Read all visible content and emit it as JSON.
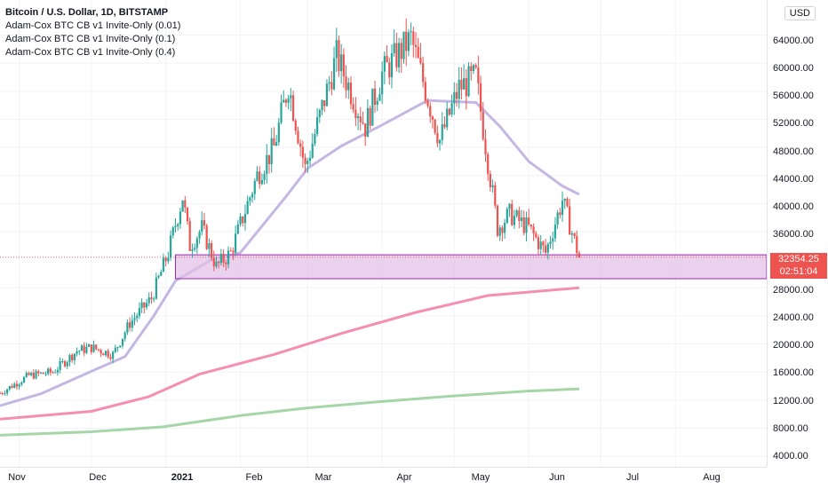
{
  "header": {
    "symbol_title": "Bitcoin / U.S. Dollar, 1D, BITSTAMP",
    "indicators": [
      "Adam-Cox BTC CB v1 Invite-Only (0.01)",
      "Adam-Cox BTC CB v1 Invite-Only (0.1)",
      "Adam-Cox BTC CB v1 Invite-Only (0.4)"
    ]
  },
  "currency_button": "USD",
  "price_axis_ticks": [
    "64000.00",
    "60000.00",
    "56000.00",
    "52000.00",
    "48000.00",
    "44000.00",
    "40000.00",
    "36000.00",
    "28000.00",
    "24000.00",
    "20000.00",
    "16000.00",
    "12000.00",
    "8000.00",
    "4000.00"
  ],
  "time_axis_ticks": [
    "Nov",
    "Dec",
    "2021",
    "Feb",
    "Mar",
    "Apr",
    "May",
    "Jun",
    "Jul",
    "Aug"
  ],
  "last_price": {
    "value": "32354.25",
    "countdown": "02:51:04"
  },
  "colors": {
    "up": "#26a69a",
    "down": "#ef5350",
    "band_fill": "#e1bee7",
    "band_border": "#9c27b0",
    "line_lavender": "#c5b7e3",
    "line_pink": "#f48fb1",
    "line_green": "#a5d6a7"
  },
  "chart_data": {
    "type": "candlestick",
    "title": "Bitcoin / U.S. Dollar, 1D, BITSTAMP",
    "xlabel": "",
    "ylabel": "",
    "ylim": [
      2500,
      69000
    ],
    "x_range": [
      "2020-10-24",
      "2021-09-08"
    ],
    "grid": true,
    "close_path": [
      [
        "2020-10-24",
        13000
      ],
      [
        "2020-11-05",
        15500
      ],
      [
        "2020-11-15",
        16000
      ],
      [
        "2020-11-25",
        19000
      ],
      [
        "2020-12-01",
        19500
      ],
      [
        "2020-12-10",
        18500
      ],
      [
        "2020-12-17",
        23000
      ],
      [
        "2020-12-26",
        26500
      ],
      [
        "2021-01-02",
        33000
      ],
      [
        "2021-01-08",
        41000
      ],
      [
        "2021-01-11",
        34000
      ],
      [
        "2021-01-16",
        36500
      ],
      [
        "2021-01-22",
        31000
      ],
      [
        "2021-01-28",
        33000
      ],
      [
        "2021-02-08",
        44000
      ],
      [
        "2021-02-15",
        48000
      ],
      [
        "2021-02-21",
        57000
      ],
      [
        "2021-02-28",
        45000
      ],
      [
        "2021-03-13",
        61000
      ],
      [
        "2021-03-25",
        51000
      ],
      [
        "2021-04-01",
        58500
      ],
      [
        "2021-04-13",
        63500
      ],
      [
        "2021-04-25",
        49000
      ],
      [
        "2021-05-03",
        56500
      ],
      [
        "2021-05-10",
        58000
      ],
      [
        "2021-05-19",
        36500
      ],
      [
        "2021-05-24",
        38500
      ],
      [
        "2021-06-01",
        36500
      ],
      [
        "2021-06-08",
        33000
      ],
      [
        "2021-06-15",
        40500
      ],
      [
        "2021-06-22",
        32354.25
      ]
    ],
    "support_zone": [
      29300,
      32700
    ],
    "series": [
      {
        "color": "#c5b7e3",
        "points": [
          [
            "2020-10-24",
            11200
          ],
          [
            "2020-11-10",
            12900
          ],
          [
            "2020-12-01",
            16100
          ],
          [
            "2020-12-15",
            18200
          ],
          [
            "2020-12-27",
            24000
          ],
          [
            "2021-01-05",
            29000
          ],
          [
            "2021-01-20",
            32000
          ],
          [
            "2021-02-01",
            33000
          ],
          [
            "2021-02-20",
            41000
          ],
          [
            "2021-03-01",
            45000
          ],
          [
            "2021-03-15",
            48200
          ],
          [
            "2021-04-01",
            51200
          ],
          [
            "2021-04-20",
            54700
          ],
          [
            "2021-05-10",
            54400
          ],
          [
            "2021-05-20",
            51000
          ],
          [
            "2021-06-01",
            46000
          ],
          [
            "2021-06-15",
            42500
          ],
          [
            "2021-06-22",
            41300
          ]
        ]
      },
      {
        "color": "#f48fb1",
        "points": [
          [
            "2020-10-24",
            9300
          ],
          [
            "2020-12-01",
            10400
          ],
          [
            "2020-12-25",
            12500
          ],
          [
            "2021-01-15",
            15700
          ],
          [
            "2021-02-15",
            18500
          ],
          [
            "2021-03-15",
            21500
          ],
          [
            "2021-04-15",
            24500
          ],
          [
            "2021-05-15",
            26900
          ],
          [
            "2021-06-22",
            28000
          ]
        ]
      },
      {
        "color": "#a5d6a7",
        "points": [
          [
            "2020-10-24",
            7000
          ],
          [
            "2020-12-01",
            7500
          ],
          [
            "2020-12-31",
            8200
          ],
          [
            "2021-02-01",
            9800
          ],
          [
            "2021-03-01",
            10900
          ],
          [
            "2021-04-01",
            11800
          ],
          [
            "2021-05-01",
            12600
          ],
          [
            "2021-06-01",
            13300
          ],
          [
            "2021-06-22",
            13600
          ]
        ]
      }
    ]
  }
}
